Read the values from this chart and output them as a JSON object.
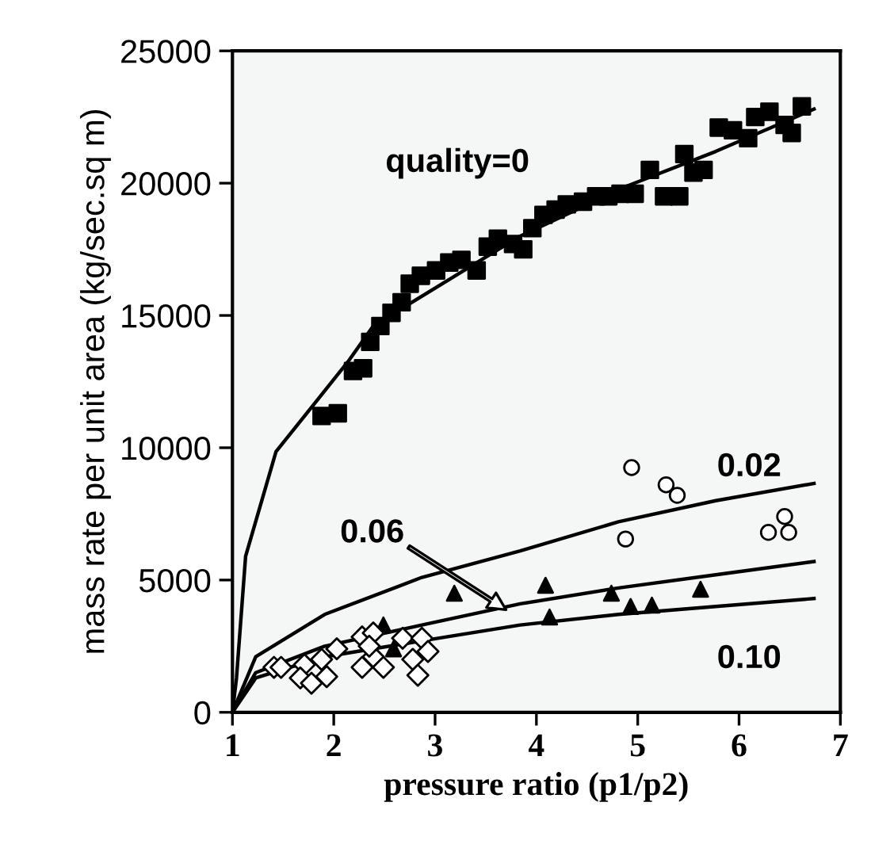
{
  "chart_data": {
    "type": "scatter",
    "xlabel": "pressure ratio (p1/p2)",
    "ylabel": "mass rate per unit area (kg/sec.sq m)",
    "xlim": [
      1,
      7
    ],
    "ylim": [
      0,
      25000
    ],
    "xticks": [
      1,
      2,
      3,
      4,
      5,
      6,
      7
    ],
    "yticks": [
      0,
      5000,
      10000,
      15000,
      20000,
      25000
    ],
    "grid": false,
    "legend": false,
    "series": [
      {
        "marker": "square",
        "color": "#000000",
        "x": [
          1.88,
          2.04,
          2.19,
          2.29,
          2.36,
          2.46,
          2.57,
          2.67,
          2.75,
          2.86,
          3.01,
          3.14,
          3.26,
          3.41,
          3.52,
          3.62,
          3.77,
          3.87,
          3.96,
          4.07,
          4.19,
          4.3,
          4.46,
          4.59,
          4.71,
          4.83,
          4.97,
          5.12,
          5.26,
          5.41,
          5.46,
          5.55,
          5.65,
          5.8,
          5.94,
          6.09,
          6.16,
          6.3,
          6.45,
          6.52,
          6.62
        ],
        "values": [
          11200,
          11300,
          12900,
          13000,
          14000,
          14600,
          15100,
          15500,
          16200,
          16500,
          16700,
          17000,
          17100,
          16700,
          17600,
          17900,
          17700,
          17500,
          18300,
          18800,
          19000,
          19200,
          19300,
          19500,
          19500,
          19600,
          19600,
          20500,
          19500,
          19500,
          21100,
          20400,
          20500,
          22100,
          22000,
          21700,
          22500,
          22700,
          22200,
          21900,
          22900
        ]
      },
      {
        "marker": "circle",
        "color": "#ffffff",
        "x": [
          4.94,
          5.28,
          5.39,
          4.88,
          6.29,
          6.45,
          6.49
        ],
        "values": [
          9250,
          8600,
          8200,
          6550,
          6800,
          7400,
          6800
        ]
      },
      {
        "marker": "triangle",
        "color": "#000000",
        "x": [
          3.19,
          4.09,
          4.74,
          5.62,
          4.13,
          4.93,
          5.14,
          2.49,
          2.59
        ],
        "values": [
          4500,
          4800,
          4500,
          4650,
          3600,
          4000,
          4050,
          3300,
          2400
        ]
      },
      {
        "marker": "diamond",
        "color": "#ffffff",
        "x": [
          1.41,
          1.48,
          1.71,
          1.67,
          1.78,
          1.93,
          1.88,
          2.03,
          2.28,
          2.39,
          2.28,
          2.39,
          2.49,
          2.68,
          2.78,
          2.87,
          2.93,
          2.83,
          2.35
        ],
        "values": [
          1700,
          1700,
          1800,
          1300,
          1100,
          1350,
          2000,
          2400,
          2850,
          3000,
          1700,
          2100,
          1700,
          2800,
          2000,
          2800,
          2300,
          1400,
          2500
        ]
      },
      {
        "type": "line",
        "marker": "none",
        "color": "#000000",
        "x": [
          1,
          1.04,
          1.13,
          1.43,
          2.14,
          2.39,
          3.84,
          4.9,
          5.77,
          6.74
        ],
        "values": [
          0,
          1300,
          5900,
          9850,
          13250,
          14600,
          18000,
          19900,
          21200,
          22800
        ]
      },
      {
        "type": "line",
        "marker": "none",
        "color": "#000000",
        "x": [
          1,
          1.23,
          1.91,
          2.87,
          3.84,
          4.81,
          5.77,
          6.74
        ],
        "values": [
          0,
          2100,
          3700,
          5100,
          6100,
          7200,
          8000,
          8650
        ]
      },
      {
        "type": "line",
        "marker": "none",
        "color": "#000000",
        "x": [
          1,
          1.23,
          1.91,
          2.87,
          3.84,
          4.81,
          5.77,
          6.74
        ],
        "values": [
          0,
          1500,
          2500,
          3300,
          4100,
          4700,
          5200,
          5700
        ]
      },
      {
        "type": "line",
        "marker": "none",
        "color": "#000000",
        "x": [
          1,
          1.23,
          1.91,
          2.87,
          3.84,
          4.81,
          5.77,
          6.74
        ],
        "values": [
          0,
          1300,
          2100,
          2700,
          3300,
          3700,
          4000,
          4300
        ]
      }
    ],
    "annotations": [
      "quality=0",
      "0.02",
      "0.06",
      "0.10"
    ]
  }
}
